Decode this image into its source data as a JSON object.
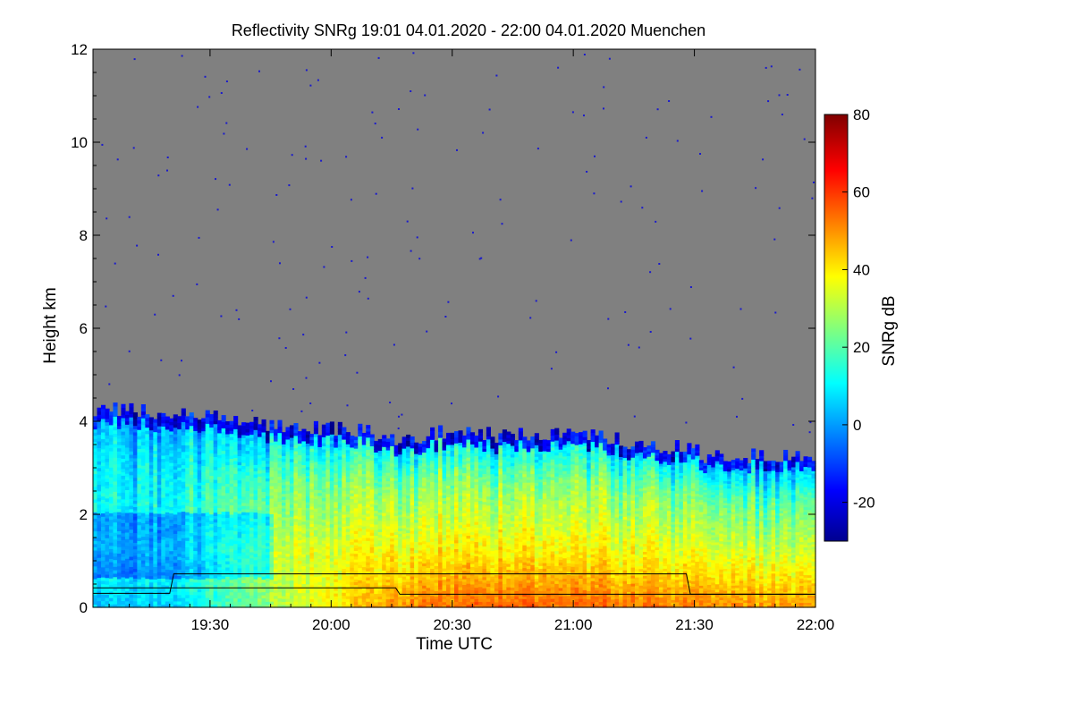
{
  "chart_data": {
    "type": "heatmap",
    "title": "Reflectivity SNRg   19:01 04.01.2020 - 22:00 04.01.2020 Muenchen",
    "xlabel": "Time UTC",
    "ylabel": "Height km",
    "colorbar_label": "SNRg dB",
    "x_ticks": [
      "19:30",
      "20:00",
      "20:30",
      "21:00",
      "21:30",
      "22:00"
    ],
    "x_tick_minutes": [
      30,
      60,
      90,
      120,
      150,
      180
    ],
    "x_range_minutes": [
      1,
      180
    ],
    "y_ticks": [
      "0",
      "2",
      "4",
      "6",
      "8",
      "10",
      "12"
    ],
    "ylim": [
      0,
      12
    ],
    "colorbar_ticks": [
      "-20",
      "0",
      "20",
      "40",
      "60",
      "80"
    ],
    "colorbar_tick_values": [
      -20,
      0,
      20,
      40,
      60,
      80
    ],
    "colorbar_range": [
      -30,
      80
    ],
    "background_color": "#808080",
    "echo_top_km": [
      [
        1,
        4.25
      ],
      [
        10,
        4.25
      ],
      [
        20,
        4.15
      ],
      [
        30,
        4.1
      ],
      [
        40,
        4.0
      ],
      [
        50,
        3.9
      ],
      [
        60,
        3.85
      ],
      [
        70,
        3.75
      ],
      [
        78,
        3.55
      ],
      [
        85,
        3.75
      ],
      [
        100,
        3.7
      ],
      [
        110,
        3.75
      ],
      [
        120,
        3.7
      ],
      [
        130,
        3.6
      ],
      [
        140,
        3.5
      ],
      [
        148,
        3.4
      ],
      [
        153,
        3.25
      ],
      [
        165,
        3.25
      ],
      [
        180,
        3.3
      ]
    ],
    "mean_snr_db_profile": [
      {
        "time_minutes": 1,
        "low_km": 4,
        "mid_km": 12,
        "upper_km": 8,
        "top_km": -2
      },
      {
        "time_minutes": 20,
        "low_km": 6,
        "mid_km": 15,
        "upper_km": 10,
        "top_km": 0
      },
      {
        "time_minutes": 40,
        "low_km": 24,
        "mid_km": 30,
        "upper_km": 18,
        "top_km": 2
      },
      {
        "time_minutes": 60,
        "low_km": 40,
        "mid_km": 36,
        "upper_km": 24,
        "top_km": 4
      },
      {
        "time_minutes": 80,
        "low_km": 52,
        "mid_km": 40,
        "upper_km": 26,
        "top_km": 5
      },
      {
        "time_minutes": 100,
        "low_km": 56,
        "mid_km": 42,
        "upper_km": 27,
        "top_km": 5
      },
      {
        "time_minutes": 120,
        "low_km": 55,
        "mid_km": 40,
        "upper_km": 26,
        "top_km": 4
      },
      {
        "time_minutes": 140,
        "low_km": 52,
        "mid_km": 38,
        "upper_km": 24,
        "top_km": 2
      },
      {
        "time_minutes": 160,
        "low_km": 50,
        "mid_km": 36,
        "upper_km": 20,
        "top_km": -4
      },
      {
        "time_minutes": 180,
        "low_km": 48,
        "mid_km": 34,
        "upper_km": 18,
        "top_km": -6
      }
    ],
    "overlay_lines": [
      {
        "points": [
          [
            1,
            0.3
          ],
          [
            20,
            0.3
          ],
          [
            21,
            0.72
          ],
          [
            148,
            0.72
          ],
          [
            149,
            0.28
          ],
          [
            180,
            0.28
          ]
        ]
      },
      {
        "points": [
          [
            1,
            0.42
          ],
          [
            76,
            0.42
          ],
          [
            77,
            0.28
          ],
          [
            180,
            0.28
          ]
        ]
      }
    ]
  }
}
